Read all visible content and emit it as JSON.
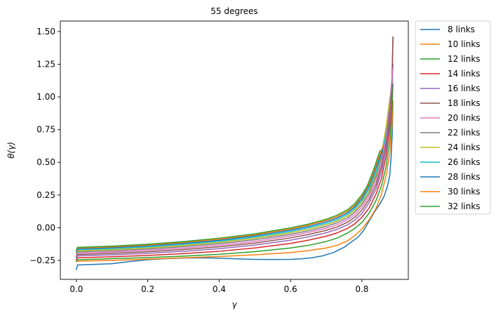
{
  "chart_data": {
    "type": "line",
    "title": "55 degrees",
    "xlabel": "γ",
    "ylabel": "θ(γ)",
    "xlim": [
      -0.045,
      0.93
    ],
    "ylim": [
      -0.395,
      1.58
    ],
    "xticks": [
      0.0,
      0.2,
      0.4,
      0.6,
      0.8
    ],
    "xtick_labels": [
      "0.0",
      "0.2",
      "0.4",
      "0.6",
      "0.8"
    ],
    "yticks": [
      -0.25,
      0.0,
      0.25,
      0.5,
      0.75,
      1.0,
      1.25,
      1.5
    ],
    "ytick_labels": [
      "−0.25",
      "0.00",
      "0.25",
      "0.50",
      "0.75",
      "1.00",
      "1.25",
      "1.50"
    ],
    "grid": false,
    "legend_position": "outside-right-top",
    "series": [
      {
        "name": "8 links",
        "color": "#1f77b4",
        "points": [
          [
            0.0,
            -0.32
          ],
          [
            0.003,
            -0.285
          ],
          [
            0.05,
            -0.28
          ],
          [
            0.1,
            -0.275
          ],
          [
            0.15,
            -0.258
          ],
          [
            0.2,
            -0.245
          ],
          [
            0.25,
            -0.237
          ],
          [
            0.3,
            -0.232
          ],
          [
            0.35,
            -0.23
          ],
          [
            0.4,
            -0.233
          ],
          [
            0.45,
            -0.238
          ],
          [
            0.5,
            -0.242
          ],
          [
            0.55,
            -0.243
          ],
          [
            0.6,
            -0.242
          ],
          [
            0.63,
            -0.238
          ],
          [
            0.66,
            -0.23
          ],
          [
            0.69,
            -0.215
          ],
          [
            0.72,
            -0.19
          ],
          [
            0.75,
            -0.15
          ],
          [
            0.77,
            -0.11
          ],
          [
            0.79,
            -0.07
          ],
          [
            0.805,
            -0.02
          ],
          [
            0.82,
            0.05
          ],
          [
            0.835,
            0.12
          ],
          [
            0.85,
            0.18
          ],
          [
            0.862,
            0.24
          ],
          [
            0.872,
            0.32
          ],
          [
            0.878,
            0.4
          ],
          [
            0.882,
            0.55
          ],
          [
            0.885,
            0.72
          ],
          [
            0.887,
            0.96
          ]
        ]
      },
      {
        "name": "10 links",
        "color": "#ff7f0e",
        "points": [
          [
            0.0,
            -0.26
          ],
          [
            0.003,
            -0.255
          ],
          [
            0.1,
            -0.25
          ],
          [
            0.2,
            -0.24
          ],
          [
            0.3,
            -0.23
          ],
          [
            0.4,
            -0.22
          ],
          [
            0.5,
            -0.207
          ],
          [
            0.6,
            -0.19
          ],
          [
            0.65,
            -0.175
          ],
          [
            0.7,
            -0.155
          ],
          [
            0.73,
            -0.135
          ],
          [
            0.76,
            -0.1
          ],
          [
            0.78,
            -0.06
          ],
          [
            0.8,
            -0.01
          ],
          [
            0.82,
            0.06
          ],
          [
            0.84,
            0.15
          ],
          [
            0.855,
            0.26
          ],
          [
            0.868,
            0.4
          ],
          [
            0.878,
            0.57
          ],
          [
            0.884,
            0.77
          ],
          [
            0.887,
            0.97
          ]
        ]
      },
      {
        "name": "12 links",
        "color": "#2ca02c",
        "points": [
          [
            0.0,
            -0.255
          ],
          [
            0.003,
            -0.245
          ],
          [
            0.1,
            -0.237
          ],
          [
            0.2,
            -0.228
          ],
          [
            0.3,
            -0.217
          ],
          [
            0.4,
            -0.203
          ],
          [
            0.5,
            -0.183
          ],
          [
            0.6,
            -0.155
          ],
          [
            0.65,
            -0.135
          ],
          [
            0.7,
            -0.105
          ],
          [
            0.73,
            -0.08
          ],
          [
            0.76,
            -0.04
          ],
          [
            0.78,
            -0.005
          ],
          [
            0.8,
            0.04
          ],
          [
            0.82,
            0.11
          ],
          [
            0.84,
            0.21
          ],
          [
            0.855,
            0.32
          ],
          [
            0.868,
            0.47
          ],
          [
            0.878,
            0.67
          ],
          [
            0.884,
            0.88
          ],
          [
            0.887,
            1.1
          ]
        ]
      },
      {
        "name": "14 links",
        "color": "#d62728",
        "points": [
          [
            0.0,
            -0.245
          ],
          [
            0.003,
            -0.23
          ],
          [
            0.1,
            -0.222
          ],
          [
            0.2,
            -0.212
          ],
          [
            0.3,
            -0.198
          ],
          [
            0.4,
            -0.18
          ],
          [
            0.5,
            -0.155
          ],
          [
            0.6,
            -0.12
          ],
          [
            0.65,
            -0.095
          ],
          [
            0.7,
            -0.065
          ],
          [
            0.73,
            -0.04
          ],
          [
            0.76,
            -0.005
          ],
          [
            0.78,
            0.03
          ],
          [
            0.8,
            0.08
          ],
          [
            0.82,
            0.15
          ],
          [
            0.84,
            0.26
          ],
          [
            0.855,
            0.38
          ],
          [
            0.868,
            0.55
          ],
          [
            0.878,
            0.77
          ],
          [
            0.884,
            1.02
          ],
          [
            0.887,
            1.45
          ]
        ]
      },
      {
        "name": "16 links",
        "color": "#9467bd",
        "points": [
          [
            0.0,
            -0.235
          ],
          [
            0.003,
            -0.215
          ],
          [
            0.1,
            -0.207
          ],
          [
            0.2,
            -0.196
          ],
          [
            0.3,
            -0.18
          ],
          [
            0.4,
            -0.16
          ],
          [
            0.5,
            -0.133
          ],
          [
            0.6,
            -0.095
          ],
          [
            0.65,
            -0.07
          ],
          [
            0.7,
            -0.038
          ],
          [
            0.73,
            -0.013
          ],
          [
            0.76,
            0.022
          ],
          [
            0.78,
            0.058
          ],
          [
            0.8,
            0.11
          ],
          [
            0.82,
            0.19
          ],
          [
            0.84,
            0.3
          ],
          [
            0.855,
            0.43
          ],
          [
            0.868,
            0.6
          ],
          [
            0.878,
            0.82
          ],
          [
            0.884,
            1.05
          ],
          [
            0.887,
            1.25
          ]
        ]
      },
      {
        "name": "18 links",
        "color": "#8c564b",
        "points": [
          [
            0.0,
            -0.22
          ],
          [
            0.003,
            -0.205
          ],
          [
            0.1,
            -0.196
          ],
          [
            0.2,
            -0.184
          ],
          [
            0.3,
            -0.167
          ],
          [
            0.4,
            -0.146
          ],
          [
            0.5,
            -0.118
          ],
          [
            0.6,
            -0.078
          ],
          [
            0.65,
            -0.052
          ],
          [
            0.7,
            -0.02
          ],
          [
            0.73,
            0.005
          ],
          [
            0.76,
            0.042
          ],
          [
            0.78,
            0.08
          ],
          [
            0.8,
            0.135
          ],
          [
            0.82,
            0.215
          ],
          [
            0.84,
            0.33
          ],
          [
            0.855,
            0.47
          ],
          [
            0.868,
            0.65
          ],
          [
            0.878,
            0.88
          ],
          [
            0.884,
            1.12
          ],
          [
            0.887,
            1.46
          ]
        ]
      },
      {
        "name": "20 links",
        "color": "#e377c2",
        "points": [
          [
            0.0,
            -0.21
          ],
          [
            0.003,
            -0.195
          ],
          [
            0.1,
            -0.186
          ],
          [
            0.2,
            -0.173
          ],
          [
            0.3,
            -0.156
          ],
          [
            0.4,
            -0.134
          ],
          [
            0.5,
            -0.105
          ],
          [
            0.6,
            -0.063
          ],
          [
            0.65,
            -0.037
          ],
          [
            0.7,
            -0.004
          ],
          [
            0.73,
            0.022
          ],
          [
            0.76,
            0.06
          ],
          [
            0.78,
            0.1
          ],
          [
            0.8,
            0.158
          ],
          [
            0.82,
            0.24
          ],
          [
            0.84,
            0.36
          ],
          [
            0.855,
            0.5
          ],
          [
            0.868,
            0.69
          ],
          [
            0.878,
            0.93
          ],
          [
            0.884,
            1.15
          ],
          [
            0.887,
            1.22
          ]
        ]
      },
      {
        "name": "22 links",
        "color": "#7f7f7f",
        "points": [
          [
            0.0,
            -0.2
          ],
          [
            0.003,
            -0.185
          ],
          [
            0.1,
            -0.176
          ],
          [
            0.2,
            -0.163
          ],
          [
            0.3,
            -0.145
          ],
          [
            0.4,
            -0.122
          ],
          [
            0.5,
            -0.092
          ],
          [
            0.6,
            -0.05
          ],
          [
            0.65,
            -0.024
          ],
          [
            0.7,
            0.01
          ],
          [
            0.73,
            0.037
          ],
          [
            0.76,
            0.076
          ],
          [
            0.78,
            0.118
          ],
          [
            0.8,
            0.178
          ],
          [
            0.82,
            0.262
          ],
          [
            0.84,
            0.39
          ],
          [
            0.855,
            0.54
          ],
          [
            0.868,
            0.74
          ],
          [
            0.878,
            0.97
          ],
          [
            0.884,
            1.07
          ]
        ]
      },
      {
        "name": "24 links",
        "color": "#bcbd22",
        "points": [
          [
            0.0,
            -0.19
          ],
          [
            0.003,
            -0.176
          ],
          [
            0.1,
            -0.167
          ],
          [
            0.2,
            -0.154
          ],
          [
            0.3,
            -0.136
          ],
          [
            0.4,
            -0.112
          ],
          [
            0.5,
            -0.081
          ],
          [
            0.6,
            -0.038
          ],
          [
            0.65,
            -0.011
          ],
          [
            0.7,
            0.023
          ],
          [
            0.73,
            0.05
          ],
          [
            0.76,
            0.09
          ],
          [
            0.78,
            0.133
          ],
          [
            0.8,
            0.195
          ],
          [
            0.82,
            0.282
          ],
          [
            0.84,
            0.41
          ],
          [
            0.855,
            0.57
          ],
          [
            0.868,
            0.77
          ],
          [
            0.878,
            0.99
          ]
        ]
      },
      {
        "name": "26 links",
        "color": "#17becf",
        "points": [
          [
            0.0,
            -0.185
          ],
          [
            0.003,
            -0.168
          ],
          [
            0.1,
            -0.159
          ],
          [
            0.2,
            -0.146
          ],
          [
            0.3,
            -0.127
          ],
          [
            0.4,
            -0.103
          ],
          [
            0.5,
            -0.071
          ],
          [
            0.6,
            -0.028
          ],
          [
            0.65,
            0.0
          ],
          [
            0.7,
            0.035
          ],
          [
            0.73,
            0.062
          ],
          [
            0.76,
            0.103
          ],
          [
            0.78,
            0.147
          ],
          [
            0.8,
            0.21
          ],
          [
            0.82,
            0.3
          ],
          [
            0.84,
            0.43
          ],
          [
            0.85,
            0.52
          ],
          [
            0.86,
            0.62
          ],
          [
            0.868,
            0.72
          ]
        ]
      },
      {
        "name": "28 links",
        "color": "#1f77b4",
        "points": [
          [
            0.0,
            -0.18
          ],
          [
            0.003,
            -0.161
          ],
          [
            0.1,
            -0.152
          ],
          [
            0.2,
            -0.138
          ],
          [
            0.3,
            -0.119
          ],
          [
            0.4,
            -0.095
          ],
          [
            0.5,
            -0.062
          ],
          [
            0.6,
            -0.018
          ],
          [
            0.65,
            0.01
          ],
          [
            0.7,
            0.046
          ],
          [
            0.73,
            0.074
          ],
          [
            0.76,
            0.115
          ],
          [
            0.78,
            0.16
          ],
          [
            0.8,
            0.225
          ],
          [
            0.82,
            0.32
          ],
          [
            0.835,
            0.42
          ],
          [
            0.845,
            0.5
          ],
          [
            0.853,
            0.56
          ],
          [
            0.858,
            0.6
          ]
        ]
      },
      {
        "name": "30 links",
        "color": "#ff7f0e",
        "points": [
          [
            0.0,
            -0.175
          ],
          [
            0.003,
            -0.155
          ],
          [
            0.1,
            -0.146
          ],
          [
            0.2,
            -0.132
          ],
          [
            0.3,
            -0.112
          ],
          [
            0.4,
            -0.087
          ],
          [
            0.5,
            -0.054
          ],
          [
            0.6,
            -0.009
          ],
          [
            0.65,
            0.02
          ],
          [
            0.7,
            0.056
          ],
          [
            0.73,
            0.085
          ],
          [
            0.76,
            0.127
          ],
          [
            0.78,
            0.172
          ],
          [
            0.8,
            0.24
          ],
          [
            0.82,
            0.335
          ],
          [
            0.835,
            0.44
          ],
          [
            0.845,
            0.52
          ],
          [
            0.853,
            0.58
          ],
          [
            0.858,
            0.62
          ]
        ]
      },
      {
        "name": "32 links",
        "color": "#2ca02c",
        "points": [
          [
            0.0,
            -0.17
          ],
          [
            0.003,
            -0.15
          ],
          [
            0.1,
            -0.141
          ],
          [
            0.2,
            -0.126
          ],
          [
            0.3,
            -0.106
          ],
          [
            0.4,
            -0.08
          ],
          [
            0.5,
            -0.047
          ],
          [
            0.6,
            -0.001
          ],
          [
            0.65,
            0.028
          ],
          [
            0.7,
            0.065
          ],
          [
            0.73,
            0.095
          ],
          [
            0.76,
            0.138
          ],
          [
            0.78,
            0.184
          ],
          [
            0.8,
            0.252
          ],
          [
            0.815,
            0.32
          ],
          [
            0.825,
            0.39
          ],
          [
            0.835,
            0.46
          ],
          [
            0.842,
            0.52
          ],
          [
            0.847,
            0.56
          ],
          [
            0.851,
            0.59
          ]
        ]
      }
    ]
  }
}
